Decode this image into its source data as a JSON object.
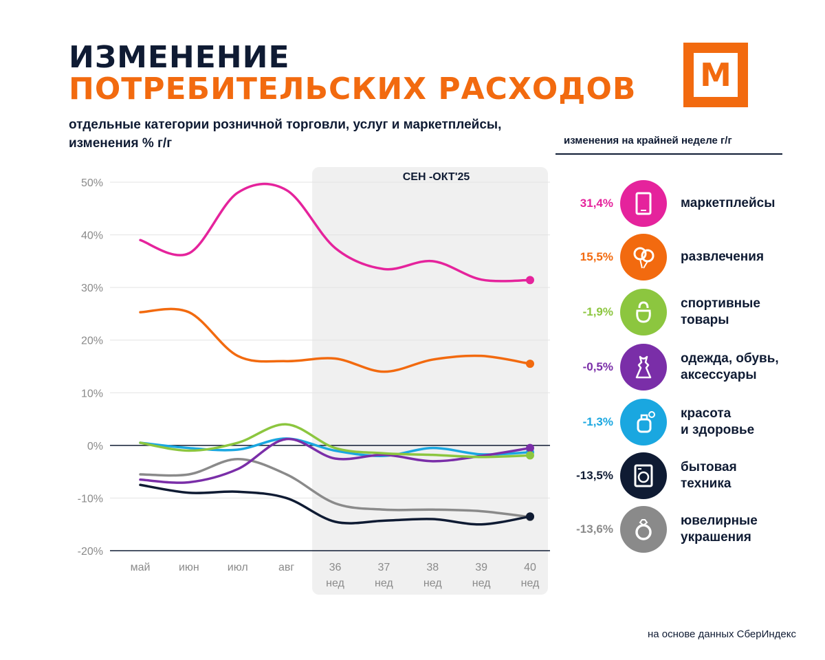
{
  "header": {
    "title_line1": "ИЗМЕНЕНИЕ",
    "title_line2": "ПОТРЕБИТЕЛЬСКИХ РАСХОДОВ",
    "subtitle": "отдельные категории розничной торговли, услуг  и маркетплейсы, изменения % г/г",
    "logo_letter": "М"
  },
  "legend": {
    "header": "изменения на крайней неделе г/г",
    "items": [
      {
        "value": "31,4%",
        "label": "маркетплейсы",
        "color": "#e5239c",
        "icon": "tablet-icon"
      },
      {
        "value": "15,5%",
        "label": "развлечения",
        "color": "#f26a0f",
        "icon": "balloons-icon"
      },
      {
        "value": "-1,9%",
        "label": "спортивные\nтовары",
        "color": "#8cc63f",
        "icon": "kettlebell-icon"
      },
      {
        "value": "-0,5%",
        "label": "одежда, обувь,\nаксессуары",
        "color": "#7a2ea8",
        "icon": "dress-icon"
      },
      {
        "value": "-1,3%",
        "label": "красота\nи здоровье",
        "color": "#1aa7e0",
        "icon": "perfume-icon"
      },
      {
        "value": "-13,5%",
        "label": "бытовая\nтехника",
        "color": "#0f1b33",
        "icon": "washing-machine-icon"
      },
      {
        "value": "-13,6%",
        "label": "ювелирные\nукрашения",
        "color": "#8a8a8a",
        "icon": "ring-icon"
      }
    ]
  },
  "source": "на основе данных СберИндекс",
  "chart_data": {
    "type": "line",
    "highlight_label": "СЕН -ОКТ'25",
    "categories": [
      [
        "май"
      ],
      [
        "июн"
      ],
      [
        "июл"
      ],
      [
        "авг"
      ],
      [
        "36",
        "нед"
      ],
      [
        "37",
        "нед"
      ],
      [
        "38",
        "нед"
      ],
      [
        "39",
        "нед"
      ],
      [
        "40",
        "нед"
      ]
    ],
    "highlight_range": [
      4,
      8
    ],
    "y_ticks": [
      "50%",
      "40%",
      "30%",
      "20%",
      "10%",
      "0%",
      "-10%",
      "-20%"
    ],
    "y_tick_values": [
      50,
      40,
      30,
      20,
      10,
      0,
      -10,
      -20
    ],
    "ylim": [
      -20,
      50
    ],
    "series": [
      {
        "name": "маркетплейсы",
        "color": "#e5239c",
        "values": [
          39,
          36.5,
          48,
          48.5,
          37.5,
          33.5,
          35,
          31.5,
          31.4
        ]
      },
      {
        "name": "развлечения",
        "color": "#f26a0f",
        "values": [
          25.3,
          25.3,
          17,
          16,
          16.5,
          14,
          16.3,
          17,
          15.5
        ]
      },
      {
        "name": "спортивные товары",
        "color": "#8cc63f",
        "values": [
          0.5,
          -1,
          0.5,
          4,
          -0.5,
          -1.5,
          -1.8,
          -2.2,
          -1.9
        ]
      },
      {
        "name": "одежда, обувь, аксессуары",
        "color": "#7a2ea8",
        "values": [
          -6.5,
          -7,
          -4.5,
          1.2,
          -2.5,
          -1.8,
          -3,
          -2,
          -0.5
        ]
      },
      {
        "name": "красота и здоровье",
        "color": "#1aa7e0",
        "values": [
          0.5,
          -0.5,
          -0.8,
          1.3,
          -1,
          -2,
          -0.5,
          -1.7,
          -1.3
        ]
      },
      {
        "name": "бытовая техника",
        "color": "#0f1b33",
        "values": [
          -7.5,
          -9,
          -8.8,
          -10,
          -14.5,
          -14.3,
          -14,
          -15,
          -13.5
        ]
      },
      {
        "name": "ювелирные украшения",
        "color": "#8a8a8a",
        "values": [
          -5.5,
          -5.5,
          -2.6,
          -5.5,
          -11,
          -12.2,
          -12.2,
          -12.5,
          -13.6
        ]
      }
    ],
    "zero_line": true,
    "grid": "horizontal"
  }
}
